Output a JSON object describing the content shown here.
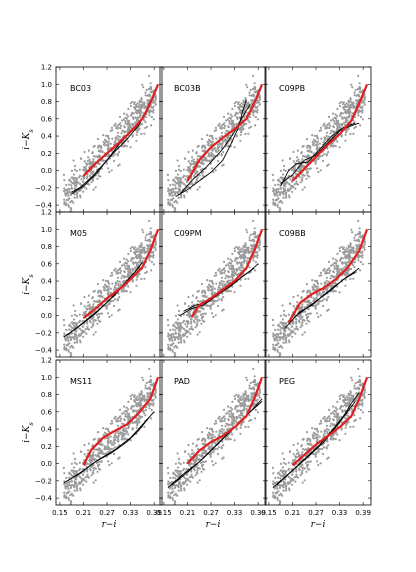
{
  "chart_data": {
    "type": "scatter",
    "layout": "3x3 grid of panels",
    "xlabel": "r−i",
    "ylabel": "i−K",
    "ylabel_sub": "s",
    "xlim": [
      0.14,
      0.41
    ],
    "ylim": [
      -0.48,
      1.2
    ],
    "xticks": [
      0.15,
      0.21,
      0.27,
      0.33,
      0.39
    ],
    "xtick_labels": [
      "0.15",
      "0.21",
      "0.27",
      "0.33",
      "0.39"
    ],
    "yticks": [
      -0.4,
      -0.2,
      0.0,
      0.2,
      0.4,
      0.6,
      0.8,
      1.0,
      1.2
    ],
    "ytick_labels": [
      "−0.4",
      "−0.2",
      "0.0",
      "0.2",
      "0.4",
      "0.6",
      "0.8",
      "1.0",
      "1.2"
    ],
    "grid": false,
    "colors": {
      "scatter": "#9b9b9b",
      "data_median": "#e02020",
      "models": "#000000"
    },
    "panels": [
      {
        "label": "BC03",
        "red": [
          [
            0.21,
            -0.06
          ],
          [
            0.24,
            0.08
          ],
          [
            0.27,
            0.2
          ],
          [
            0.3,
            0.32
          ],
          [
            0.33,
            0.45
          ],
          [
            0.36,
            0.6
          ],
          [
            0.38,
            0.78
          ],
          [
            0.4,
            1.0
          ]
        ],
        "models": [
          [
            [
              0.18,
              -0.27
            ],
            [
              0.21,
              -0.18
            ],
            [
              0.24,
              -0.05
            ],
            [
              0.27,
              0.12
            ],
            [
              0.3,
              0.3
            ],
            [
              0.33,
              0.45
            ],
            [
              0.36,
              0.6
            ],
            [
              0.38,
              0.8
            ]
          ],
          [
            [
              0.18,
              -0.25
            ],
            [
              0.2,
              -0.2
            ],
            [
              0.23,
              -0.08
            ],
            [
              0.26,
              0.07
            ],
            [
              0.29,
              0.22
            ],
            [
              0.32,
              0.36
            ],
            [
              0.35,
              0.52
            ],
            [
              0.37,
              0.67
            ],
            [
              0.38,
              0.78
            ]
          ]
        ]
      },
      {
        "label": "BC03B",
        "red": [
          [
            0.21,
            -0.12
          ],
          [
            0.24,
            0.12
          ],
          [
            0.27,
            0.27
          ],
          [
            0.3,
            0.38
          ],
          [
            0.33,
            0.48
          ],
          [
            0.36,
            0.6
          ],
          [
            0.38,
            0.78
          ],
          [
            0.4,
            1.0
          ]
        ],
        "models": [
          [
            [
              0.18,
              -0.3
            ],
            [
              0.21,
              -0.22
            ],
            [
              0.24,
              -0.12
            ],
            [
              0.27,
              -0.02
            ],
            [
              0.3,
              0.12
            ],
            [
              0.32,
              0.3
            ],
            [
              0.34,
              0.5
            ],
            [
              0.35,
              0.68
            ],
            [
              0.36,
              0.82
            ]
          ],
          [
            [
              0.19,
              -0.28
            ],
            [
              0.22,
              -0.12
            ],
            [
              0.26,
              0.05
            ],
            [
              0.3,
              0.25
            ],
            [
              0.33,
              0.45
            ],
            [
              0.35,
              0.62
            ],
            [
              0.37,
              0.77
            ]
          ]
        ]
      },
      {
        "label": "C09PB",
        "red": [
          [
            0.21,
            -0.12
          ],
          [
            0.24,
            0.02
          ],
          [
            0.27,
            0.16
          ],
          [
            0.3,
            0.3
          ],
          [
            0.33,
            0.42
          ],
          [
            0.36,
            0.58
          ],
          [
            0.38,
            0.78
          ],
          [
            0.4,
            1.0
          ]
        ],
        "models": [
          [
            [
              0.18,
              -0.18
            ],
            [
              0.2,
              0.0
            ],
            [
              0.22,
              0.08
            ],
            [
              0.25,
              0.1
            ],
            [
              0.28,
              0.25
            ],
            [
              0.31,
              0.4
            ],
            [
              0.34,
              0.5
            ],
            [
              0.37,
              0.55
            ]
          ],
          [
            [
              0.18,
              -0.15
            ],
            [
              0.21,
              -0.05
            ],
            [
              0.24,
              0.12
            ],
            [
              0.27,
              0.18
            ],
            [
              0.3,
              0.32
            ],
            [
              0.33,
              0.46
            ],
            [
              0.36,
              0.52
            ],
            [
              0.38,
              0.55
            ]
          ]
        ]
      },
      {
        "label": "M05",
        "red": [
          [
            0.21,
            -0.03
          ],
          [
            0.24,
            0.08
          ],
          [
            0.27,
            0.2
          ],
          [
            0.3,
            0.3
          ],
          [
            0.33,
            0.42
          ],
          [
            0.36,
            0.56
          ],
          [
            0.38,
            0.75
          ],
          [
            0.4,
            1.0
          ]
        ],
        "models": [
          [
            [
              0.16,
              -0.25
            ],
            [
              0.2,
              -0.12
            ],
            [
              0.24,
              0.02
            ],
            [
              0.28,
              0.2
            ],
            [
              0.31,
              0.35
            ],
            [
              0.34,
              0.5
            ],
            [
              0.36,
              0.62
            ]
          ],
          [
            [
              0.17,
              -0.22
            ],
            [
              0.21,
              -0.08
            ],
            [
              0.25,
              0.07
            ],
            [
              0.29,
              0.24
            ],
            [
              0.32,
              0.4
            ],
            [
              0.35,
              0.55
            ],
            [
              0.36,
              0.62
            ]
          ]
        ]
      },
      {
        "label": "C09PM",
        "red": [
          [
            0.22,
            -0.02
          ],
          [
            0.24,
            0.12
          ],
          [
            0.27,
            0.2
          ],
          [
            0.3,
            0.3
          ],
          [
            0.33,
            0.4
          ],
          [
            0.36,
            0.55
          ],
          [
            0.38,
            0.75
          ],
          [
            0.4,
            1.0
          ]
        ],
        "models": [
          [
            [
              0.19,
              0.0
            ],
            [
              0.22,
              0.08
            ],
            [
              0.25,
              0.12
            ],
            [
              0.28,
              0.22
            ],
            [
              0.31,
              0.32
            ],
            [
              0.34,
              0.42
            ],
            [
              0.37,
              0.52
            ],
            [
              0.39,
              0.6
            ]
          ],
          [
            [
              0.2,
              0.05
            ],
            [
              0.23,
              0.12
            ],
            [
              0.26,
              0.15
            ],
            [
              0.29,
              0.25
            ],
            [
              0.32,
              0.34
            ],
            [
              0.35,
              0.45
            ],
            [
              0.38,
              0.55
            ]
          ]
        ]
      },
      {
        "label": "C09BB",
        "red": [
          [
            0.2,
            -0.08
          ],
          [
            0.23,
            0.15
          ],
          [
            0.26,
            0.25
          ],
          [
            0.29,
            0.32
          ],
          [
            0.32,
            0.42
          ],
          [
            0.35,
            0.55
          ],
          [
            0.38,
            0.75
          ],
          [
            0.4,
            1.0
          ]
        ],
        "models": [
          [
            [
              0.19,
              -0.15
            ],
            [
              0.22,
              0.0
            ],
            [
              0.25,
              0.1
            ],
            [
              0.28,
              0.2
            ],
            [
              0.31,
              0.3
            ],
            [
              0.34,
              0.42
            ],
            [
              0.37,
              0.5
            ]
          ],
          [
            [
              0.2,
              -0.1
            ],
            [
              0.23,
              0.05
            ],
            [
              0.26,
              0.12
            ],
            [
              0.29,
              0.24
            ],
            [
              0.32,
              0.35
            ],
            [
              0.35,
              0.45
            ],
            [
              0.38,
              0.55
            ]
          ]
        ]
      },
      {
        "label": "MS11",
        "red": [
          [
            0.21,
            -0.02
          ],
          [
            0.23,
            0.16
          ],
          [
            0.26,
            0.3
          ],
          [
            0.29,
            0.38
          ],
          [
            0.32,
            0.45
          ],
          [
            0.35,
            0.58
          ],
          [
            0.38,
            0.75
          ],
          [
            0.4,
            1.0
          ]
        ],
        "models": [
          [
            [
              0.16,
              -0.22
            ],
            [
              0.2,
              -0.12
            ],
            [
              0.24,
              0.02
            ],
            [
              0.28,
              0.12
            ],
            [
              0.32,
              0.25
            ],
            [
              0.35,
              0.38
            ],
            [
              0.38,
              0.55
            ]
          ],
          [
            [
              0.17,
              -0.2
            ],
            [
              0.21,
              -0.08
            ],
            [
              0.25,
              0.05
            ],
            [
              0.29,
              0.16
            ],
            [
              0.33,
              0.3
            ],
            [
              0.36,
              0.45
            ],
            [
              0.39,
              0.6
            ]
          ]
        ]
      },
      {
        "label": "PAD",
        "red": [
          [
            0.21,
            0.0
          ],
          [
            0.24,
            0.15
          ],
          [
            0.27,
            0.25
          ],
          [
            0.3,
            0.32
          ],
          [
            0.33,
            0.42
          ],
          [
            0.36,
            0.55
          ],
          [
            0.38,
            0.75
          ],
          [
            0.4,
            1.0
          ]
        ],
        "models": [
          [
            [
              0.16,
              -0.28
            ],
            [
              0.2,
              -0.12
            ],
            [
              0.24,
              0.02
            ],
            [
              0.28,
              0.2
            ],
            [
              0.32,
              0.38
            ],
            [
              0.36,
              0.55
            ],
            [
              0.4,
              0.75
            ]
          ],
          [
            [
              0.17,
              -0.25
            ],
            [
              0.21,
              -0.1
            ],
            [
              0.25,
              0.06
            ],
            [
              0.29,
              0.24
            ],
            [
              0.33,
              0.42
            ],
            [
              0.37,
              0.6
            ],
            [
              0.4,
              0.72
            ]
          ]
        ]
      },
      {
        "label": "PEG",
        "red": [
          [
            0.21,
            -0.02
          ],
          [
            0.24,
            0.1
          ],
          [
            0.27,
            0.22
          ],
          [
            0.3,
            0.32
          ],
          [
            0.33,
            0.42
          ],
          [
            0.36,
            0.55
          ],
          [
            0.38,
            0.75
          ],
          [
            0.4,
            1.0
          ]
        ],
        "models": [
          [
            [
              0.16,
              -0.28
            ],
            [
              0.2,
              -0.12
            ],
            [
              0.24,
              0.05
            ],
            [
              0.28,
              0.22
            ],
            [
              0.31,
              0.38
            ],
            [
              0.34,
              0.55
            ],
            [
              0.36,
              0.7
            ],
            [
              0.38,
              0.82
            ]
          ],
          [
            [
              0.17,
              -0.25
            ],
            [
              0.21,
              -0.08
            ],
            [
              0.25,
              0.08
            ],
            [
              0.29,
              0.25
            ],
            [
              0.32,
              0.42
            ],
            [
              0.35,
              0.6
            ],
            [
              0.37,
              0.72
            ]
          ]
        ]
      }
    ]
  }
}
